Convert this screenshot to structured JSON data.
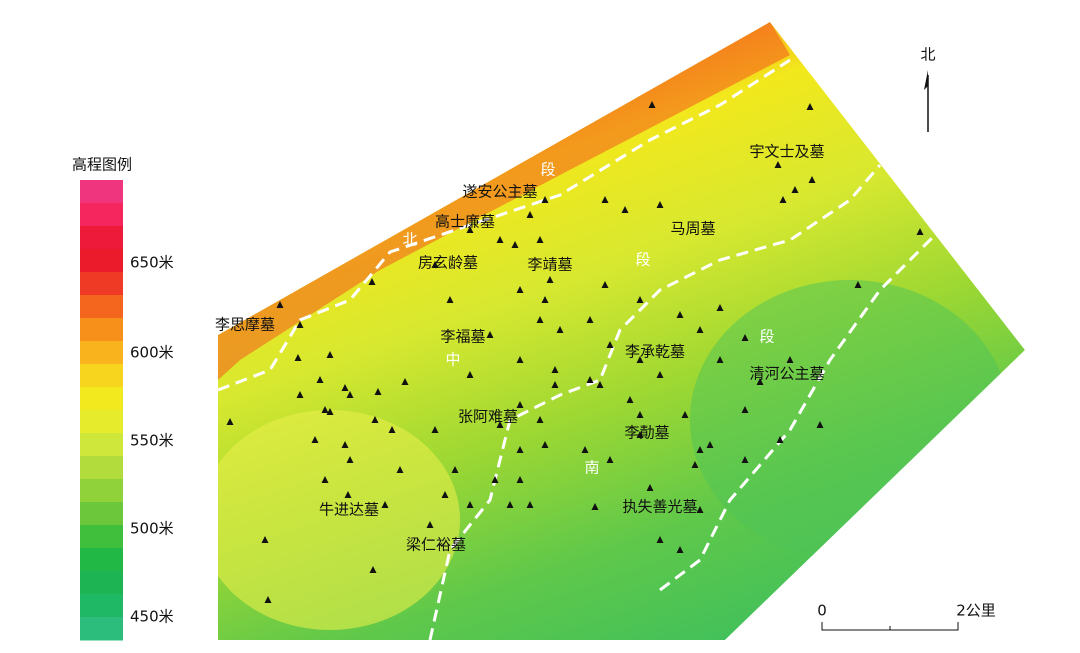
{
  "legend": {
    "title": "高程图例",
    "labels": [
      "650米",
      "600米",
      "550米",
      "500米",
      "450米"
    ]
  },
  "north": "北",
  "scale": {
    "start": "0",
    "end": "2公里"
  },
  "tombs": [
    "李思摩墓",
    "遂安公主墓",
    "高士廉墓",
    "房玄龄墓",
    "李靖墓",
    "马周墓",
    "宇文士及墓",
    "李福墓",
    "李承乾墓",
    "清河公主墓",
    "张阿难墓",
    "李勣墓",
    "牛进达墓",
    "执失善光墓",
    "梁仁裕墓"
  ],
  "sections": [
    "段",
    "北",
    "段",
    "中",
    "段",
    "南"
  ]
}
